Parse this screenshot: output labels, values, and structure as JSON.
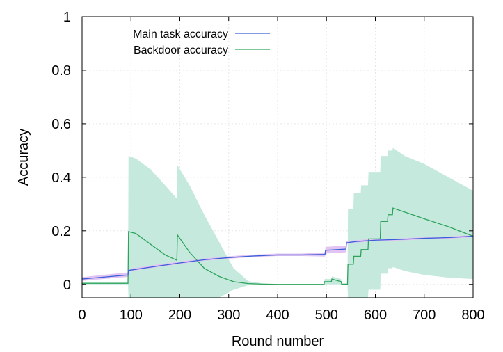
{
  "chart_data": {
    "type": "line",
    "title": "",
    "xlabel": "Round number",
    "ylabel": "Accuracy",
    "xlim": [
      0,
      800
    ],
    "ylim": [
      -0.05,
      1
    ],
    "xticks": [
      "0",
      "100",
      "200",
      "300",
      "400",
      "500",
      "600",
      "700",
      "800"
    ],
    "yticks": [
      "0",
      "0.2",
      "0.4",
      "0.6",
      "0.8",
      "1"
    ],
    "ytick_values": [
      0,
      0.2,
      0.4,
      0.6,
      0.8,
      1
    ],
    "xtick_values": [
      0,
      100,
      200,
      300,
      400,
      500,
      600,
      700,
      800
    ],
    "grid": true,
    "legend_position": "top-left",
    "series": [
      {
        "name": "Main task accuracy",
        "color": "#3a5fd9",
        "band_color": "#e2c4f2",
        "x": [
          0,
          94,
          95,
          150,
          200,
          250,
          300,
          350,
          400,
          450,
          497,
          498,
          540,
          541,
          560,
          600,
          650,
          700,
          750,
          800
        ],
        "y": [
          0.02,
          0.035,
          0.052,
          0.067,
          0.08,
          0.092,
          0.1,
          0.106,
          0.11,
          0.11,
          0.112,
          0.127,
          0.132,
          0.155,
          0.16,
          0.165,
          0.168,
          0.172,
          0.175,
          0.18
        ],
        "band_lower": [
          0.013,
          0.028,
          0.048,
          0.063,
          0.076,
          0.088,
          0.096,
          0.102,
          0.106,
          0.106,
          0.104,
          0.115,
          0.12,
          0.15,
          0.156,
          0.161,
          0.164,
          0.168,
          0.171,
          0.176
        ],
        "band_upper": [
          0.027,
          0.045,
          0.058,
          0.073,
          0.085,
          0.097,
          0.105,
          0.111,
          0.115,
          0.115,
          0.12,
          0.14,
          0.145,
          0.162,
          0.165,
          0.17,
          0.172,
          0.176,
          0.179,
          0.184
        ]
      },
      {
        "name": "Backdoor accuracy",
        "color": "#2ea35c",
        "band_color": "#c5eadd",
        "x": [
          0,
          94,
          95,
          110,
          140,
          170,
          194,
          195,
          220,
          250,
          280,
          310,
          340,
          370,
          400,
          450,
          495,
          496,
          510,
          511,
          530,
          531,
          543,
          544,
          555,
          556,
          570,
          571,
          585,
          586,
          610,
          611,
          625,
          626,
          635,
          636,
          660,
          700,
          750,
          800
        ],
        "y": [
          0.004,
          0.004,
          0.197,
          0.19,
          0.15,
          0.11,
          0.09,
          0.185,
          0.12,
          0.06,
          0.03,
          0.01,
          0.003,
          0.001,
          0.0,
          0.0,
          0.0,
          0.01,
          0.01,
          0.02,
          0.01,
          0.001,
          0.001,
          0.075,
          0.075,
          0.105,
          0.105,
          0.13,
          0.13,
          0.17,
          0.17,
          0.235,
          0.235,
          0.26,
          0.26,
          0.285,
          0.27,
          0.245,
          0.215,
          0.18
        ],
        "band_lower": [
          0.0,
          0.0,
          -0.05,
          -0.05,
          -0.05,
          -0.05,
          -0.05,
          -0.05,
          -0.05,
          -0.05,
          -0.05,
          -0.02,
          -0.003,
          0.0,
          0.0,
          0.0,
          0.0,
          0.0,
          0.0,
          0.0,
          0.0,
          0.0,
          0.0,
          -0.05,
          -0.05,
          -0.05,
          -0.05,
          -0.05,
          -0.05,
          -0.02,
          -0.02,
          0.04,
          0.04,
          0.06,
          0.06,
          0.065,
          0.05,
          0.035,
          0.025,
          0.02
        ],
        "band_upper": [
          0.008,
          0.008,
          0.48,
          0.47,
          0.43,
          0.37,
          0.32,
          0.445,
          0.37,
          0.26,
          0.16,
          0.06,
          0.012,
          0.003,
          0.0,
          0.0,
          0.0,
          0.02,
          0.02,
          0.03,
          0.02,
          0.002,
          0.002,
          0.28,
          0.28,
          0.34,
          0.34,
          0.37,
          0.37,
          0.42,
          0.42,
          0.48,
          0.48,
          0.5,
          0.5,
          0.51,
          0.48,
          0.45,
          0.4,
          0.35
        ]
      }
    ]
  }
}
